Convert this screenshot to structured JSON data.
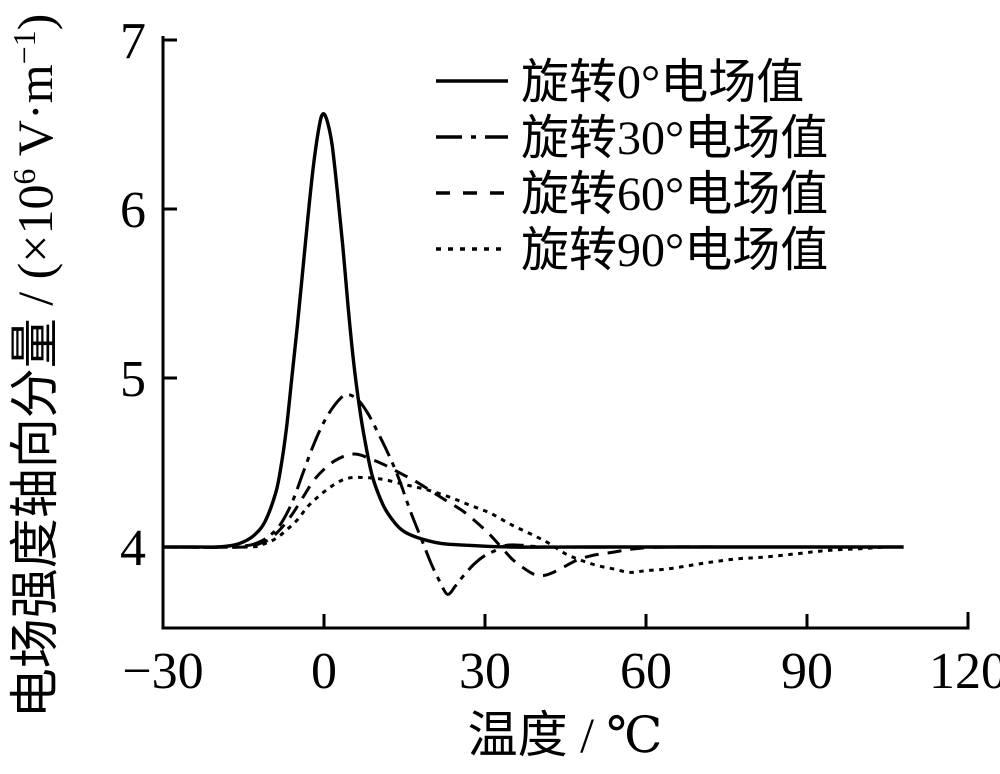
{
  "figure": {
    "background": "#ffffff",
    "ink_color": "#000000"
  },
  "chart_data": {
    "type": "line",
    "title": "",
    "xlabel": "温度 / ℃",
    "ylabel": "电场强度轴向分量 / (×10⁶ V·m⁻¹)",
    "ylabel_parts": {
      "prefix": "电场强度轴向分量 / (×10",
      "sup1": "6",
      "mid": " V·m",
      "sup2": "−1",
      "suffix": ")"
    },
    "xlim": [
      -30,
      120
    ],
    "ylim": [
      3.5,
      7
    ],
    "x_ticks": [
      -30,
      0,
      30,
      60,
      90,
      120
    ],
    "x_tick_labels": [
      "−30",
      "0",
      "30",
      "60",
      "90",
      "120"
    ],
    "y_ticks": [
      4,
      5,
      6,
      7
    ],
    "y_tick_labels": [
      "4",
      "5",
      "6",
      "7"
    ],
    "grid": false,
    "legend_position": "upper right inside",
    "series": [
      {
        "name": "旋转0°电场值",
        "style": "solid",
        "points": [
          [
            -30,
            4
          ],
          [
            -24,
            4
          ],
          [
            -20,
            4
          ],
          [
            -17,
            4.01
          ],
          [
            -15,
            4.03
          ],
          [
            -13,
            4.07
          ],
          [
            -11,
            4.15
          ],
          [
            -9,
            4.32
          ],
          [
            -8,
            4.48
          ],
          [
            -7,
            4.7
          ],
          [
            -6,
            5.0
          ],
          [
            -5,
            5.3
          ],
          [
            -4,
            5.62
          ],
          [
            -3,
            5.95
          ],
          [
            -2,
            6.25
          ],
          [
            -1,
            6.47
          ],
          [
            -0.3,
            6.56
          ],
          [
            0.5,
            6.53
          ],
          [
            1.5,
            6.38
          ],
          [
            2.5,
            6.1
          ],
          [
            3.5,
            5.78
          ],
          [
            4.5,
            5.42
          ],
          [
            5.5,
            5.1
          ],
          [
            6.5,
            4.85
          ],
          [
            7.5,
            4.65
          ],
          [
            9,
            4.42
          ],
          [
            11,
            4.25
          ],
          [
            13,
            4.15
          ],
          [
            15,
            4.09
          ],
          [
            18,
            4.05
          ],
          [
            22,
            4.02
          ],
          [
            27,
            4.01
          ],
          [
            35,
            4
          ],
          [
            50,
            4
          ],
          [
            70,
            4
          ],
          [
            90,
            4
          ],
          [
            108,
            4
          ]
        ]
      },
      {
        "name": "旋转30°电场值",
        "style": "dash-dot",
        "points": [
          [
            -30,
            4
          ],
          [
            -18,
            4
          ],
          [
            -14,
            4.01
          ],
          [
            -12,
            4.03
          ],
          [
            -10,
            4.07
          ],
          [
            -8,
            4.14
          ],
          [
            -6,
            4.26
          ],
          [
            -4,
            4.43
          ],
          [
            -2,
            4.6
          ],
          [
            0,
            4.74
          ],
          [
            2,
            4.84
          ],
          [
            4,
            4.9
          ],
          [
            6,
            4.88
          ],
          [
            8,
            4.8
          ],
          [
            10,
            4.68
          ],
          [
            12,
            4.55
          ],
          [
            14,
            4.4
          ],
          [
            16,
            4.22
          ],
          [
            18,
            4.06
          ],
          [
            20,
            3.9
          ],
          [
            21.5,
            3.8
          ],
          [
            23,
            3.72
          ],
          [
            24.5,
            3.77
          ],
          [
            26,
            3.83
          ],
          [
            28,
            3.9
          ],
          [
            30,
            3.95
          ],
          [
            32,
            3.98
          ],
          [
            34,
            4.01
          ],
          [
            37,
            4.01
          ],
          [
            42,
            4
          ],
          [
            60,
            4
          ],
          [
            80,
            4
          ],
          [
            108,
            4
          ]
        ]
      },
      {
        "name": "旋转60°电场值",
        "style": "dashed",
        "points": [
          [
            -30,
            4
          ],
          [
            -15,
            4
          ],
          [
            -12,
            4.02
          ],
          [
            -10,
            4.05
          ],
          [
            -8,
            4.11
          ],
          [
            -6,
            4.19
          ],
          [
            -4,
            4.29
          ],
          [
            -2,
            4.39
          ],
          [
            0,
            4.46
          ],
          [
            2,
            4.51
          ],
          [
            4,
            4.54
          ],
          [
            6,
            4.55
          ],
          [
            8,
            4.53
          ],
          [
            11,
            4.49
          ],
          [
            14,
            4.44
          ],
          [
            17,
            4.39
          ],
          [
            20,
            4.33
          ],
          [
            23,
            4.27
          ],
          [
            26,
            4.21
          ],
          [
            29,
            4.13
          ],
          [
            31,
            4.07
          ],
          [
            33,
            4.0
          ],
          [
            35,
            3.93
          ],
          [
            37,
            3.88
          ],
          [
            39,
            3.84
          ],
          [
            40.5,
            3.83
          ],
          [
            42,
            3.84
          ],
          [
            44,
            3.87
          ],
          [
            47,
            3.92
          ],
          [
            50,
            3.95
          ],
          [
            54,
            3.97
          ],
          [
            58,
            3.99
          ],
          [
            64,
            4
          ],
          [
            80,
            4
          ],
          [
            108,
            4
          ]
        ]
      },
      {
        "name": "旋转90°电场值",
        "style": "dotted",
        "points": [
          [
            -30,
            4
          ],
          [
            -14,
            4
          ],
          [
            -11,
            4.02
          ],
          [
            -9,
            4.05
          ],
          [
            -7,
            4.1
          ],
          [
            -5,
            4.16
          ],
          [
            -3,
            4.24
          ],
          [
            -1,
            4.3
          ],
          [
            1,
            4.35
          ],
          [
            3,
            4.39
          ],
          [
            5,
            4.41
          ],
          [
            8,
            4.41
          ],
          [
            11,
            4.4
          ],
          [
            15,
            4.37
          ],
          [
            19,
            4.34
          ],
          [
            23,
            4.3
          ],
          [
            27,
            4.25
          ],
          [
            31,
            4.2
          ],
          [
            35,
            4.13
          ],
          [
            39,
            4.07
          ],
          [
            42,
            4.02
          ],
          [
            45,
            3.96
          ],
          [
            48,
            3.92
          ],
          [
            51,
            3.89
          ],
          [
            54,
            3.87
          ],
          [
            57,
            3.85
          ],
          [
            60,
            3.86
          ],
          [
            64,
            3.87
          ],
          [
            68,
            3.89
          ],
          [
            72,
            3.91
          ],
          [
            77,
            3.93
          ],
          [
            82,
            3.94
          ],
          [
            88,
            3.96
          ],
          [
            94,
            3.98
          ],
          [
            100,
            3.99
          ],
          [
            105,
            4
          ],
          [
            108,
            4
          ]
        ]
      }
    ]
  }
}
